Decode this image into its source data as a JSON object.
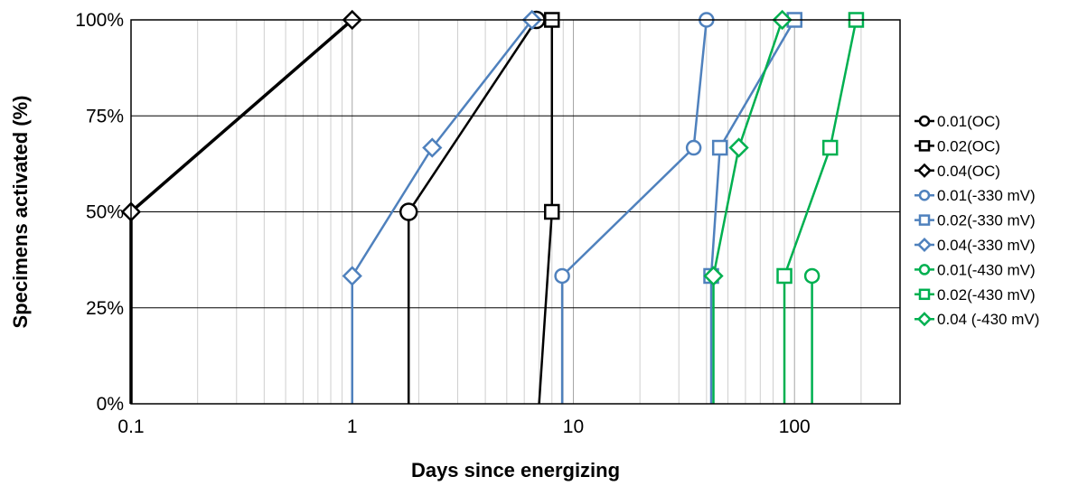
{
  "chart_data": {
    "type": "line",
    "title": "",
    "xlabel": "Days since energizing",
    "ylabel": "Specimens activated (%)",
    "x_scale": "log",
    "xlim": [
      0.1,
      300
    ],
    "ylim": [
      0,
      100
    ],
    "x_ticks": [
      "0.1",
      "1",
      "10",
      "100"
    ],
    "y_ticks": [
      "0%",
      "25%",
      "50%",
      "75%",
      "100%"
    ],
    "grid": {
      "x_major": true,
      "x_minor": true,
      "y_major": true
    },
    "legend_position": "right",
    "series": [
      {
        "name": "0.01(OC)",
        "color": "#000000",
        "marker": "circle",
        "marker_size": "large",
        "points": [
          [
            1.8,
            0
          ],
          [
            1.8,
            50
          ],
          [
            6.8,
            100
          ]
        ]
      },
      {
        "name": "0.02(OC)",
        "color": "#000000",
        "marker": "square",
        "points": [
          [
            7,
            0
          ],
          [
            8,
            50
          ],
          [
            8,
            100
          ]
        ]
      },
      {
        "name": "0.04(OC)",
        "color": "#000000",
        "marker": "diamond",
        "line_width": "thick",
        "points": [
          [
            0.1,
            0
          ],
          [
            0.1,
            50
          ],
          [
            1,
            100
          ]
        ]
      },
      {
        "name": "0.01(-330 mV)",
        "color": "#4F81BD",
        "marker": "circle",
        "points": [
          [
            8.9,
            0
          ],
          [
            8.9,
            33.3
          ],
          [
            35,
            66.7
          ],
          [
            40,
            100
          ]
        ]
      },
      {
        "name": "0.02(-330 mV)",
        "color": "#4F81BD",
        "marker": "square",
        "points": [
          [
            42,
            0
          ],
          [
            42,
            33.3
          ],
          [
            46,
            66.7
          ],
          [
            100,
            100
          ]
        ]
      },
      {
        "name": "0.04(-330 mV)",
        "color": "#4F81BD",
        "marker": "diamond",
        "points": [
          [
            1,
            0
          ],
          [
            1,
            33.3
          ],
          [
            2.3,
            66.7
          ],
          [
            6.5,
            100
          ]
        ]
      },
      {
        "name": "0.01(-430 mV)",
        "color": "#00B050",
        "marker": "circle",
        "points": [
          [
            120,
            0
          ],
          [
            120,
            33.3
          ]
        ]
      },
      {
        "name": "0.02(-430 mV)",
        "color": "#00B050",
        "marker": "square",
        "points": [
          [
            90,
            0
          ],
          [
            90,
            33.3
          ],
          [
            145,
            66.7
          ],
          [
            190,
            100
          ]
        ]
      },
      {
        "name": "0.04 (-430 mV)",
        "color": "#00B050",
        "marker": "diamond",
        "points": [
          [
            43,
            0
          ],
          [
            43,
            33.3
          ],
          [
            56,
            66.7
          ],
          [
            88,
            100
          ]
        ]
      }
    ]
  }
}
